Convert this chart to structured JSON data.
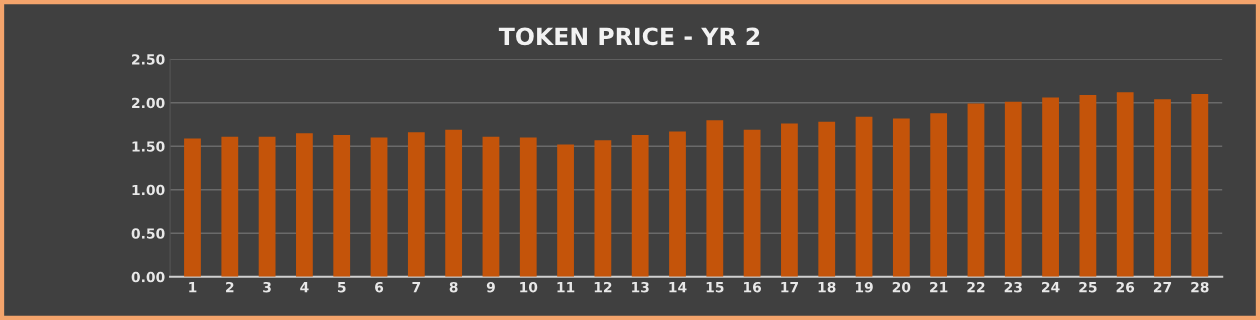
{
  "chart_data": {
    "type": "bar",
    "title": "TOKEN PRICE - YR 2",
    "categories": [
      "1",
      "2",
      "3",
      "4",
      "5",
      "6",
      "7",
      "8",
      "9",
      "10",
      "11",
      "12",
      "13",
      "14",
      "15",
      "16",
      "17",
      "18",
      "19",
      "20",
      "21",
      "22",
      "23",
      "24",
      "25",
      "26",
      "27",
      "28"
    ],
    "values": [
      1.59,
      1.61,
      1.61,
      1.65,
      1.63,
      1.6,
      1.66,
      1.69,
      1.61,
      1.6,
      1.52,
      1.57,
      1.63,
      1.67,
      1.8,
      1.69,
      1.76,
      1.78,
      1.84,
      1.82,
      1.88,
      1.99,
      2.01,
      2.06,
      2.09,
      2.12,
      2.04,
      2.1
    ],
    "color": "#c4540a",
    "ylim": [
      0,
      2.5
    ],
    "yticks": [
      {
        "value": 0,
        "label": "0.00"
      },
      {
        "value": 0.5,
        "label": "0.50"
      },
      {
        "value": 1,
        "label": "1.00"
      },
      {
        "value": 1.5,
        "label": "1.50"
      },
      {
        "value": 2,
        "label": "2.00"
      },
      {
        "value": 2.5,
        "label": "2.50"
      }
    ],
    "grid": "y",
    "legend": false
  }
}
